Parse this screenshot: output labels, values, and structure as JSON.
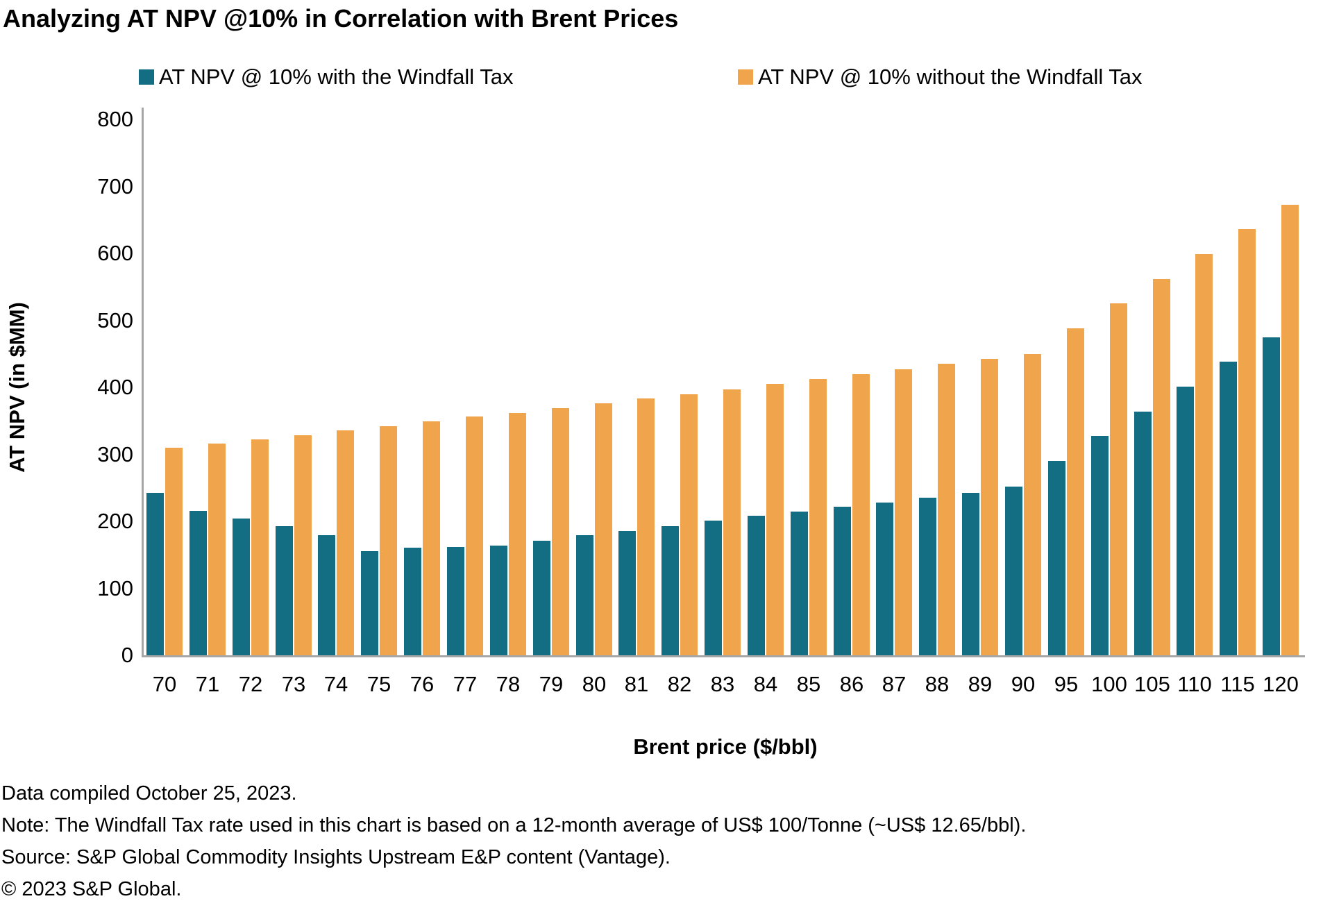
{
  "title": "Analyzing AT NPV @10% in Correlation with Brent Prices",
  "colors": {
    "with_tax": "#136e84",
    "without_tax": "#f0a44c",
    "axis_line": "#a6a6a6",
    "text": "#000000"
  },
  "legend": {
    "with_tax_label": "AT NPV @ 10% with the Windfall Tax",
    "without_tax_label": "AT NPV @ 10% without the Windfall Tax"
  },
  "y_axis": {
    "title": "AT NPV (in $MM)",
    "ticks": [
      800,
      700,
      600,
      500,
      400,
      300,
      200,
      100,
      0
    ]
  },
  "x_axis": {
    "title": "Brent price ($/bbl)"
  },
  "chart_data": {
    "type": "bar",
    "title": "Analyzing AT NPV @10% in Correlation with Brent Prices",
    "xlabel": "Brent price ($/bbl)",
    "ylabel": "AT NPV (in $MM)",
    "ylim": [
      0,
      800
    ],
    "grid": false,
    "legend_position": "top",
    "categories": [
      "70",
      "71",
      "72",
      "73",
      "74",
      "75",
      "76",
      "77",
      "78",
      "79",
      "80",
      "81",
      "82",
      "83",
      "84",
      "85",
      "86",
      "87",
      "88",
      "89",
      "90",
      "95",
      "100",
      "105",
      "110",
      "115",
      "120"
    ],
    "series": [
      {
        "name": "AT NPV @ 10% with the Windfall Tax",
        "color": "#136e84",
        "values": [
          243,
          216,
          204,
          193,
          179,
          155,
          161,
          162,
          164,
          171,
          179,
          186,
          193,
          201,
          208,
          215,
          222,
          228,
          235,
          243,
          252,
          290,
          327,
          364,
          401,
          438,
          475
        ]
      },
      {
        "name": "AT NPV @ 10% without the Windfall Tax",
        "color": "#f0a44c",
        "values": [
          310,
          316,
          322,
          329,
          336,
          342,
          349,
          356,
          362,
          369,
          376,
          383,
          390,
          397,
          405,
          412,
          420,
          427,
          435,
          442,
          450,
          488,
          525,
          562,
          599,
          636,
          673
        ]
      }
    ]
  },
  "footer": {
    "line1": "Data compiled October 25, 2023.",
    "line2": "Note: The Windfall Tax rate used in this chart is based on a 12-month average of US$ 100/Tonne (~US$ 12.65/bbl).",
    "line3": "Source: S&P Global Commodity Insights Upstream E&P content (Vantage).",
    "line4": "© 2023 S&P Global."
  }
}
